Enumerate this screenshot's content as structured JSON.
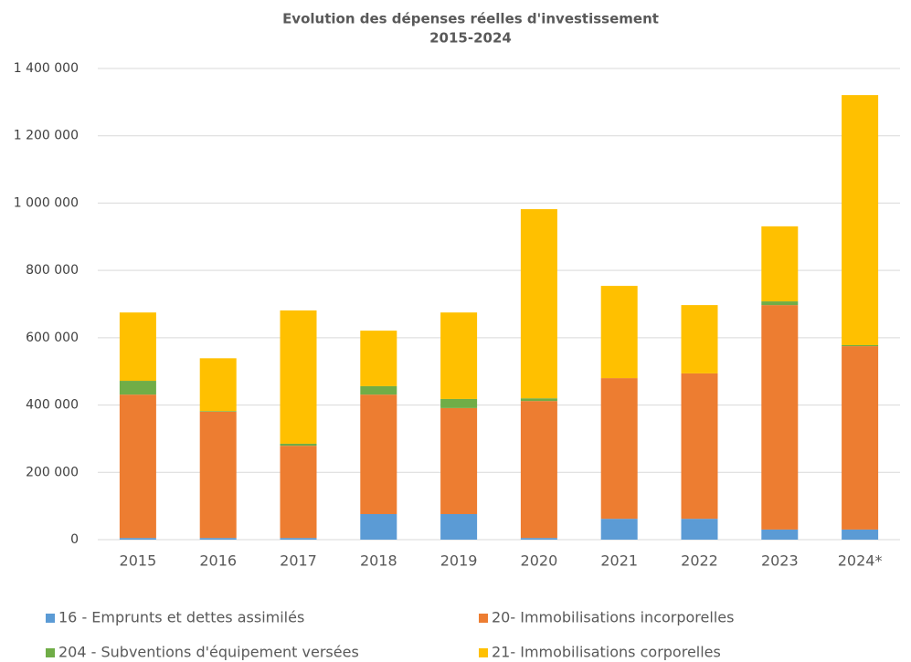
{
  "chart_data": {
    "type": "stacked_bar",
    "title": "Evolution des dépenses réelles d'investissement",
    "subtitle": "2015-2024",
    "categories": [
      "2015",
      "2016",
      "2017",
      "2018",
      "2019",
      "2020",
      "2021",
      "2022",
      "2023",
      "2024*"
    ],
    "series": [
      {
        "name": "16 - Emprunts et dettes assimilés",
        "color": "#5b9bd5",
        "values": [
          5000,
          5000,
          5000,
          76000,
          76000,
          5000,
          62000,
          62000,
          30000,
          30000
        ]
      },
      {
        "name": "20- Immobilisations incorporelles",
        "color": "#ed7d31",
        "values": [
          426000,
          375000,
          274000,
          355000,
          315000,
          407000,
          418000,
          432000,
          667000,
          545000
        ]
      },
      {
        "name": "204 - Subventions d'équipement versées",
        "color": "#70ad47",
        "values": [
          41000,
          2000,
          6000,
          25000,
          27000,
          8000,
          0,
          0,
          11000,
          3000
        ]
      },
      {
        "name": "21- Immobilisations corporelles",
        "color": "#ffc000",
        "values": [
          203000,
          157000,
          396000,
          165000,
          257000,
          562000,
          274000,
          203000,
          223000,
          743000
        ]
      }
    ],
    "ylim": [
      0,
      1400000
    ],
    "yticks": [
      0,
      {
        "value": 200000,
        "label": "200 000"
      },
      {
        "value": 400000,
        "label": "400 000"
      },
      {
        "value": 600000,
        "label": "600 000"
      },
      {
        "value": 800000,
        "label": "800 000"
      },
      {
        "value": 1000000,
        "label": "1 000 000"
      },
      {
        "value": 1200000,
        "label": "1 200 000"
      },
      {
        "value": 1400000,
        "label": "1 400 000"
      }
    ],
    "grid": true
  }
}
